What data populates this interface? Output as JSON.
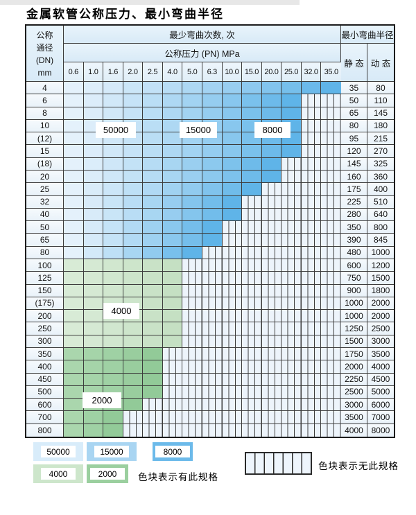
{
  "title": "金属软管公称压力、最小弯曲半径",
  "table": {
    "dn_header_lines": [
      "公称",
      "通径",
      "(DN)",
      "mm"
    ],
    "bend_count_header": "最少弯曲次数, 次",
    "pressure_header": "公称压力 (PN) MPa",
    "radius_header": "最小弯曲半径",
    "static_header": "静 态",
    "dynamic_header": "动 态",
    "pressure_columns": [
      "0.6",
      "1.0",
      "1.6",
      "2.0",
      "2.5",
      "4.0",
      "5.0",
      "6.3",
      "10.0",
      "15.0",
      "20.0",
      "25.0",
      "32.0",
      "35.0"
    ],
    "rows": [
      {
        "dn": "4",
        "colored": 14,
        "zone": "blue",
        "static": "35",
        "dynamic": "80"
      },
      {
        "dn": "6",
        "colored": 12,
        "zone": "blue",
        "static": "50",
        "dynamic": "110"
      },
      {
        "dn": "8",
        "colored": 12,
        "zone": "blue",
        "static": "65",
        "dynamic": "145"
      },
      {
        "dn": "10",
        "colored": 12,
        "zone": "blue",
        "static": "80",
        "dynamic": "180"
      },
      {
        "dn": "(12)",
        "colored": 12,
        "zone": "blue",
        "static": "95",
        "dynamic": "215"
      },
      {
        "dn": "15",
        "colored": 12,
        "zone": "blue",
        "static": "120",
        "dynamic": "270"
      },
      {
        "dn": "(18)",
        "colored": 11,
        "zone": "blue",
        "static": "145",
        "dynamic": "325"
      },
      {
        "dn": "20",
        "colored": 11,
        "zone": "blue",
        "static": "160",
        "dynamic": "360"
      },
      {
        "dn": "25",
        "colored": 10,
        "zone": "blue",
        "static": "175",
        "dynamic": "400"
      },
      {
        "dn": "32",
        "colored": 9,
        "zone": "blue",
        "static": "225",
        "dynamic": "510"
      },
      {
        "dn": "40",
        "colored": 9,
        "zone": "blue",
        "static": "280",
        "dynamic": "640"
      },
      {
        "dn": "50",
        "colored": 8,
        "zone": "blue",
        "static": "350",
        "dynamic": "800"
      },
      {
        "dn": "65",
        "colored": 8,
        "zone": "blue",
        "static": "390",
        "dynamic": "845"
      },
      {
        "dn": "80",
        "colored": 7,
        "zone": "blue",
        "static": "480",
        "dynamic": "1000"
      },
      {
        "dn": "100",
        "colored": 6,
        "zone": "green4000",
        "static": "600",
        "dynamic": "1200"
      },
      {
        "dn": "125",
        "colored": 6,
        "zone": "green4000",
        "static": "750",
        "dynamic": "1500"
      },
      {
        "dn": "150",
        "colored": 6,
        "zone": "green4000",
        "static": "900",
        "dynamic": "1800"
      },
      {
        "dn": "(175)",
        "colored": 6,
        "zone": "green4000",
        "static": "1000",
        "dynamic": "2000"
      },
      {
        "dn": "200",
        "colored": 6,
        "zone": "green4000",
        "static": "1000",
        "dynamic": "2000"
      },
      {
        "dn": "250",
        "colored": 6,
        "zone": "green4000",
        "static": "1250",
        "dynamic": "2500"
      },
      {
        "dn": "300",
        "colored": 6,
        "zone": "green4000",
        "static": "1500",
        "dynamic": "3000"
      },
      {
        "dn": "350",
        "colored": 5,
        "zone": "green2000",
        "static": "1750",
        "dynamic": "3500"
      },
      {
        "dn": "400",
        "colored": 5,
        "zone": "green2000",
        "static": "2000",
        "dynamic": "4000"
      },
      {
        "dn": "450",
        "colored": 5,
        "zone": "green2000",
        "static": "2250",
        "dynamic": "4500"
      },
      {
        "dn": "500",
        "colored": 5,
        "zone": "green2000",
        "static": "2500",
        "dynamic": "5000"
      },
      {
        "dn": "600",
        "colored": 4,
        "zone": "green2000",
        "static": "3000",
        "dynamic": "6000"
      },
      {
        "dn": "700",
        "colored": 3,
        "zone": "green2000",
        "static": "3500",
        "dynamic": "7000"
      },
      {
        "dn": "800",
        "colored": 3,
        "zone": "green2000",
        "static": "4000",
        "dynamic": "8000"
      }
    ]
  },
  "zone_labels": {
    "blue_50000": "50000",
    "blue_15000": "15000",
    "blue_8000": "8000",
    "green_4000": "4000",
    "green_2000": "2000"
  },
  "colors": {
    "blue_light": "#e4f1fb",
    "blue_dark": "#5fb4e8",
    "green4000_light": "#d8ebd6",
    "green4000_dark": "#c5e0c3",
    "green2000_light": "#aad6ad",
    "green2000_dark": "#92ca98",
    "hatch_fill": "#edf4fb",
    "grid_line": "#3c3c3c",
    "legend_50000": "#d8ecfa",
    "legend_15000": "#a9d5f2",
    "legend_8000": "#6cbaea",
    "legend_4000": "#cde6cb",
    "legend_2000": "#9bcf9f"
  },
  "legend": {
    "has_spec_text": "色块表示有此规格",
    "no_spec_text": "色块表示无此规格"
  }
}
